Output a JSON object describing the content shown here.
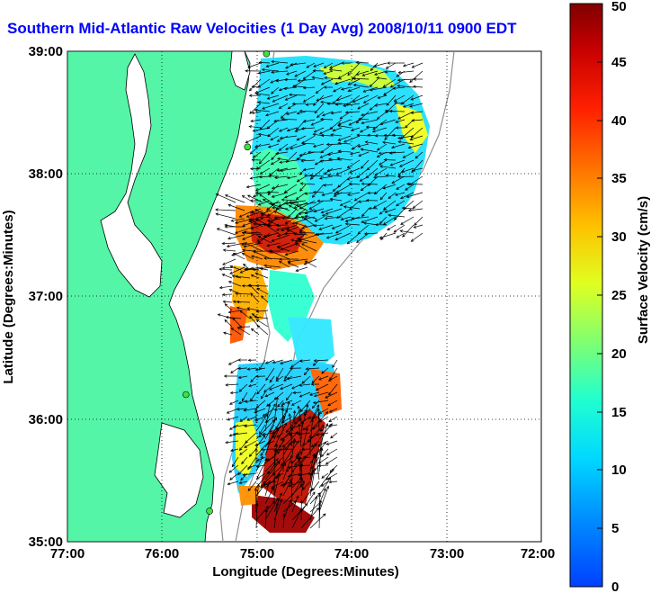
{
  "title": "Southern Mid-Atlantic Raw Velocities (1 Day Avg) 2008/10/11 0900 EDT",
  "xlabel": "Longitude (Degrees:Minutes)",
  "ylabel": "Latitude (Degrees:Minutes)",
  "x_ticks": [
    "77:00",
    "76:00",
    "75:00",
    "74:00",
    "73:00",
    "72:00"
  ],
  "y_ticks": [
    "39:00",
    "38:00",
    "37:00",
    "36:00",
    "35:00"
  ],
  "colorbar": {
    "label": "Surface Velocity (cm/s)",
    "ticks": [
      "0",
      "5",
      "10",
      "15",
      "20",
      "25",
      "30",
      "35",
      "40",
      "45",
      "50"
    ],
    "min": 0,
    "max": 50
  },
  "map": {
    "lon_range": [
      -77,
      -72
    ],
    "lat_range": [
      35,
      39
    ],
    "land_color": "#55f5a8",
    "grid": true
  },
  "stations": [
    {
      "lon": -74.9,
      "lat": 38.98
    },
    {
      "lon": -75.1,
      "lat": 38.22
    },
    {
      "lon": -75.75,
      "lat": 36.2
    },
    {
      "lon": -75.5,
      "lat": 35.25
    }
  ]
}
